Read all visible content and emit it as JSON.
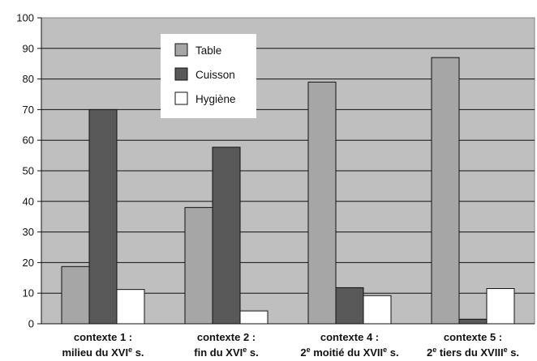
{
  "chart_data": {
    "type": "bar",
    "title": "",
    "xlabel": "",
    "ylabel": "",
    "ylim": [
      0,
      100
    ],
    "yticks": [
      0,
      10,
      20,
      30,
      40,
      50,
      60,
      70,
      80,
      90,
      100
    ],
    "grid": true,
    "legend_position": "top-center",
    "categories": [
      {
        "line1": "contexte 1 :",
        "line2_pre": "milieu du XVI",
        "line2_sup": "e",
        "line2_post": " s."
      },
      {
        "line1": "contexte 2 :",
        "line2_pre": "fin du XVI",
        "line2_sup": "e",
        "line2_post": " s."
      },
      {
        "line1": "contexte 4 :",
        "line2_lead": "2",
        "line2_lead_sup": "e",
        "line2_pre": " moitié du XVII",
        "line2_sup": "e",
        "line2_post": " s."
      },
      {
        "line1": "contexte 5 :",
        "line2_lead": "2",
        "line2_lead_sup": "e",
        "line2_pre": " tiers du XVIII",
        "line2_sup": "e",
        "line2_post": " s."
      }
    ],
    "series": [
      {
        "name": "Table",
        "color": "#a6a6a6",
        "values": [
          18.7,
          38.0,
          79.0,
          87.0
        ]
      },
      {
        "name": "Cuisson",
        "color": "#595959",
        "values": [
          70.0,
          57.7,
          11.8,
          1.5
        ]
      },
      {
        "name": "Hygiène",
        "color": "#ffffff",
        "values": [
          11.2,
          4.2,
          9.2,
          11.5
        ]
      }
    ],
    "plot_background": "#bfbfbf"
  }
}
